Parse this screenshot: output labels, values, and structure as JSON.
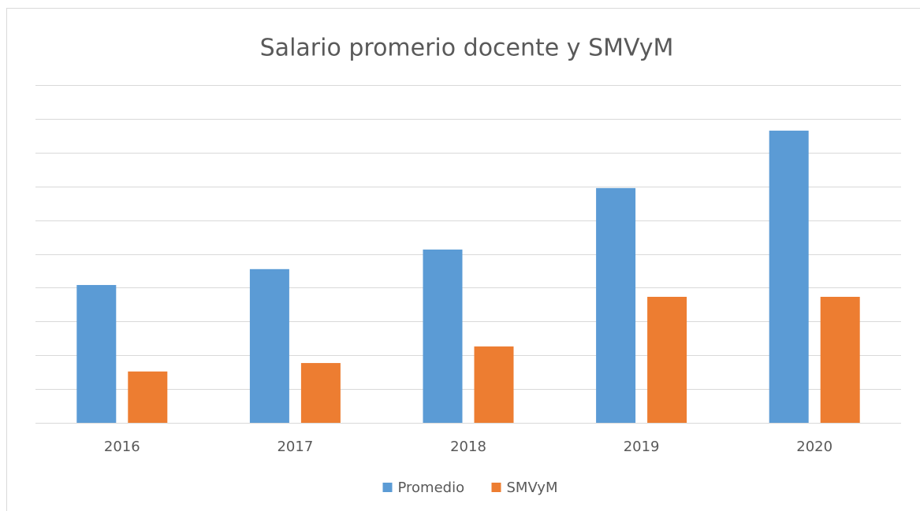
{
  "chart_data": {
    "type": "bar",
    "title": "Salario promerio docente y SMVyM",
    "categories": [
      "2016",
      "2017",
      "2018",
      "2019",
      "2020"
    ],
    "series": [
      {
        "name": "Promedio",
        "color": "#5b9bd5",
        "values": [
          4.08,
          4.55,
          5.13,
          6.95,
          8.65
        ]
      },
      {
        "name": "SMVyM",
        "color": "#ed7d31",
        "values": [
          1.52,
          1.77,
          2.26,
          3.73,
          3.73
        ]
      }
    ],
    "ylim": [
      0,
      10
    ],
    "yticks": [
      0,
      1,
      2,
      3,
      4,
      5,
      6,
      7,
      8,
      9,
      10
    ],
    "grid": true,
    "legend": "bottom"
  }
}
